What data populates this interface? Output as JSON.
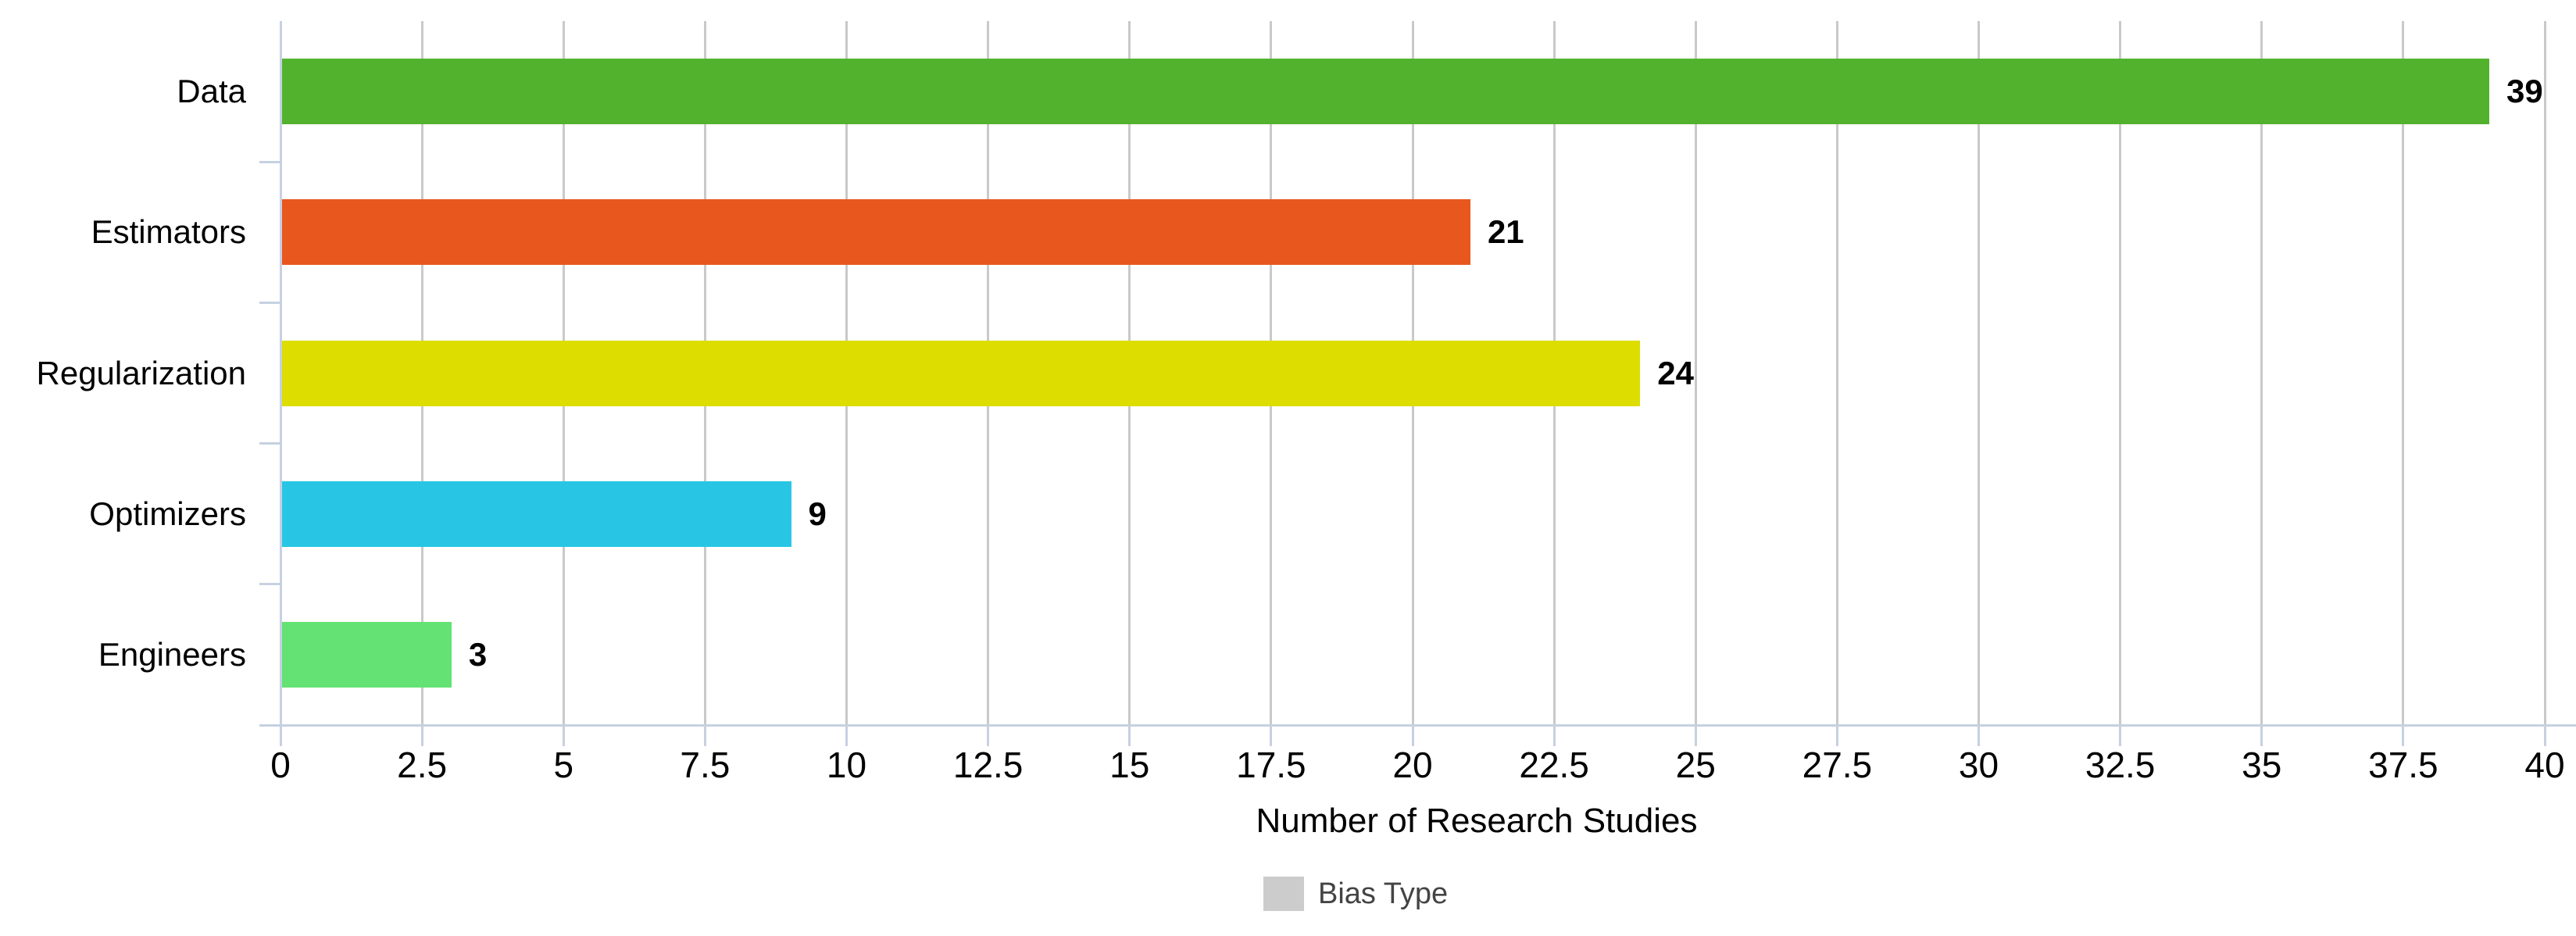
{
  "chart_data": {
    "type": "bar",
    "orientation": "horizontal",
    "title": "",
    "xlabel": "Number of Research Studies",
    "ylabel": "",
    "categories": [
      "Data",
      "Estimators",
      "Regularization",
      "Optimizers",
      "Engineers"
    ],
    "values": [
      39,
      21,
      24,
      9,
      3
    ],
    "value_labels": [
      "39",
      "21",
      "24",
      "9",
      "3"
    ],
    "bar_colors": [
      "#52b22e",
      "#e8571d",
      "#dddd00",
      "#28c6e4",
      "#64e274"
    ],
    "xlim": [
      0,
      40
    ],
    "xticks": [
      0,
      2.5,
      5,
      7.5,
      10,
      12.5,
      15,
      17.5,
      20,
      22.5,
      25,
      27.5,
      30,
      32.5,
      35,
      37.5,
      40
    ],
    "xtick_labels": [
      "0",
      "2.5",
      "5",
      "7.5",
      "10",
      "12.5",
      "15",
      "17.5",
      "20",
      "22.5",
      "25",
      "27.5",
      "30",
      "32.5",
      "35",
      "37.5",
      "40"
    ],
    "grid": true,
    "legend": {
      "label": "Bias Type",
      "swatch_color": "#cccccc",
      "position": "bottom"
    },
    "colors": {
      "axis_line": "#c6d1e1",
      "gridline": "#c9c9c9",
      "text": "#000000",
      "legend_text": "#444444"
    }
  }
}
